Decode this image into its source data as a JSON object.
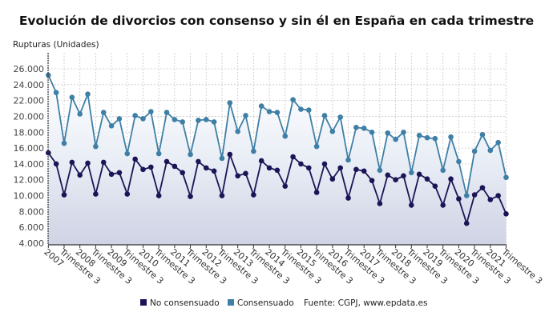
{
  "chart_data": {
    "type": "line",
    "title": "Evolución de divorcios con consenso y sin él en España en cada trimestre",
    "ylabel": "Rupturas (Unidades)",
    "xlabel": "",
    "ylim": [
      4000,
      26000
    ],
    "y_ticks": [
      "26.000",
      "24.000",
      "22.000",
      "20.000",
      "18.000",
      "16.000",
      "14.000",
      "12.000",
      "10.000",
      "8.000",
      "6.000",
      "4.000"
    ],
    "y_tick_values": [
      26000,
      24000,
      22000,
      20000,
      18000,
      16000,
      14000,
      12000,
      10000,
      8000,
      6000,
      4000
    ],
    "x_labels": [
      "2007",
      "Trimestre 3",
      "2008",
      "Trimestre 3",
      "2009",
      "Trimestre 3",
      "2010",
      "Trimestre 3",
      "2011",
      "Trimestre 3",
      "2012",
      "Trimestre 3",
      "2013",
      "Trimestre 3",
      "2014",
      "Trimestre 3",
      "2015",
      "Trimestre 3",
      "2016",
      "Trimestre 3",
      "2017",
      "Trimestre 3",
      "2018",
      "Trimestre 3",
      "2019",
      "Trimestre 3",
      "2020",
      "Trimestre 3",
      "2021",
      "Trimestre 3"
    ],
    "grid": true,
    "legend_position": "bottom",
    "source": "Fuente: CGPJ, www.epdata.es",
    "series": [
      {
        "name": "No consensuado",
        "color": "#1c1456",
        "values": [
          15400,
          14000,
          10100,
          14200,
          12600,
          14100,
          10200,
          14200,
          12700,
          12900,
          10200,
          14600,
          13300,
          13600,
          10000,
          14300,
          13700,
          12900,
          9900,
          14300,
          13500,
          13100,
          10000,
          15200,
          12500,
          12800,
          10100,
          14400,
          13500,
          13200,
          11200,
          14900,
          14000,
          13500,
          10400,
          14000,
          12100,
          13500,
          9700,
          13300,
          13100,
          11900,
          9000,
          12600,
          12000,
          12500,
          8800,
          12700,
          12100,
          11200,
          8800,
          12100,
          9600,
          6500,
          10100,
          11000,
          9500,
          10000,
          7700
        ]
      },
      {
        "name": "Consensuado",
        "color": "#3f7fa6",
        "values": [
          25200,
          23000,
          16600,
          22400,
          20300,
          22800,
          16200,
          20500,
          18800,
          19700,
          15300,
          20100,
          19700,
          20600,
          15300,
          20500,
          19600,
          19300,
          15200,
          19500,
          19600,
          19300,
          14700,
          21700,
          18100,
          20100,
          15600,
          21300,
          20600,
          20500,
          17500,
          22100,
          20900,
          20800,
          16200,
          20100,
          18100,
          19900,
          14500,
          18600,
          18500,
          18000,
          13200,
          17900,
          17100,
          18000,
          12900,
          17600,
          17300,
          17200,
          13200,
          17400,
          14300,
          10000,
          15600,
          17700,
          15700,
          16700,
          12300
        ]
      }
    ]
  }
}
